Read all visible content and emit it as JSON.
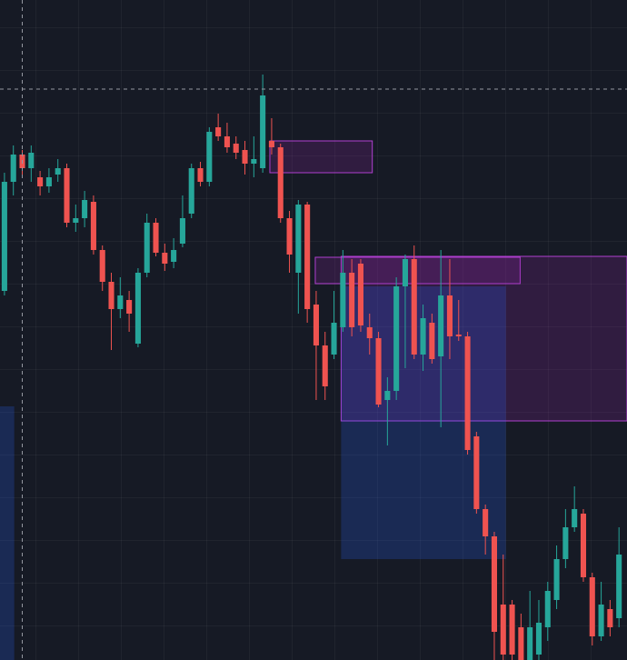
{
  "chart_data": {
    "type": "candlestick",
    "xlim": [
      -0.5,
      69.9
    ],
    "ylim": [
      0,
      726
    ],
    "up_color": "#26a69a",
    "down_color": "#ef5350",
    "open": [
      406,
      526,
      556,
      541,
      531,
      521,
      534,
      541,
      481,
      486,
      504,
      451,
      416,
      386,
      396,
      348,
      426,
      481,
      448,
      438,
      458,
      491,
      541,
      526,
      586,
      576,
      568,
      561,
      546,
      541,
      571,
      564,
      486,
      426,
      501,
      391,
      346,
      336,
      366,
      426,
      436,
      366,
      354,
      286,
      296,
      411,
      441,
      336,
      371,
      334,
      401,
      358,
      356,
      246,
      166,
      136,
      61,
      61,
      36,
      0,
      6,
      36,
      66,
      111,
      146,
      161,
      91,
      26,
      56,
      46
    ],
    "high": [
      536,
      566,
      561,
      566,
      538,
      541,
      551,
      546,
      501,
      516,
      511,
      456,
      426,
      421,
      406,
      431,
      491,
      486,
      458,
      464,
      511,
      546,
      548,
      586,
      601,
      591,
      576,
      571,
      576,
      644,
      596,
      568,
      494,
      506,
      504,
      406,
      361,
      406,
      451,
      441,
      441,
      381,
      361,
      311,
      421,
      446,
      456,
      391,
      381,
      451,
      441,
      396,
      361,
      251,
      171,
      141,
      116,
      66,
      51,
      76,
      66,
      86,
      126,
      166,
      191,
      166,
      96,
      86,
      66,
      146
    ],
    "low": [
      401,
      511,
      531,
      526,
      511,
      514,
      526,
      476,
      471,
      476,
      446,
      406,
      341,
      376,
      361,
      344,
      421,
      444,
      428,
      431,
      454,
      486,
      521,
      521,
      571,
      558,
      551,
      534,
      531,
      536,
      556,
      481,
      426,
      381,
      371,
      286,
      286,
      331,
      361,
      356,
      361,
      336,
      278,
      236,
      286,
      321,
      331,
      318,
      326,
      256,
      331,
      351,
      226,
      161,
      116,
      0,
      0,
      0,
      0,
      0,
      0,
      21,
      56,
      101,
      141,
      86,
      16,
      21,
      26,
      36
    ],
    "close": [
      526,
      556,
      541,
      558,
      521,
      531,
      541,
      481,
      486,
      506,
      451,
      416,
      386,
      401,
      381,
      426,
      481,
      448,
      436,
      451,
      486,
      541,
      526,
      581,
      576,
      564,
      558,
      546,
      551,
      621,
      564,
      486,
      446,
      501,
      386,
      346,
      301,
      371,
      426,
      366,
      368,
      354,
      281,
      296,
      411,
      441,
      336,
      376,
      331,
      401,
      356,
      356,
      231,
      166,
      136,
      31,
      6,
      6,
      0,
      36,
      41,
      76,
      111,
      146,
      166,
      91,
      26,
      61,
      36,
      116
    ],
    "zones": [
      {
        "from": 29.8,
        "to": 41.3,
        "top": 571,
        "bottom": 536,
        "color": "#9c27b0"
      },
      {
        "from": 34.9,
        "to": 57.9,
        "top": 443,
        "bottom": 414,
        "color": "#9c27b0"
      },
      {
        "from": 37.8,
        "to": 69.9,
        "top": 444,
        "bottom": 263,
        "color": "#9c27b0"
      },
      {
        "from": 37.8,
        "to": 56.3,
        "top": 411,
        "bottom": 111,
        "color": "#2962ff"
      },
      {
        "from": -0.5,
        "to": 1.1,
        "top": 279,
        "bottom": 0,
        "color": "#2962ff"
      }
    ],
    "crosshair": {
      "value": 628,
      "index": 2
    }
  }
}
